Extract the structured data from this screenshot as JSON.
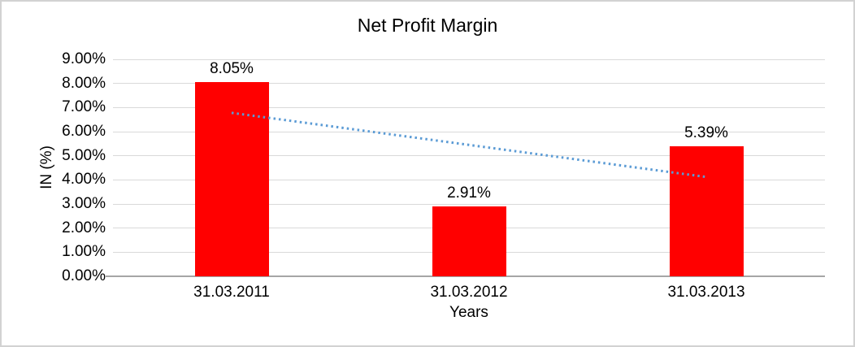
{
  "window": {
    "background": "#FFFFFF",
    "border_color": "#D2D2D2"
  },
  "chart_data": {
    "type": "bar",
    "title": "Net Profit Margin",
    "xlabel": "Years",
    "ylabel": "IN (%)",
    "categories": [
      "31.03.2011",
      "31.03.2012",
      "31.03.2013"
    ],
    "values": [
      8.05,
      2.91,
      5.39
    ],
    "data_labels": [
      "8.05%",
      "2.91%",
      "5.39%"
    ],
    "ylim": [
      0,
      9
    ],
    "ytick_step": 1,
    "ytick_labels": [
      "0.00%",
      "1.00%",
      "2.00%",
      "3.00%",
      "4.00%",
      "5.00%",
      "6.00%",
      "7.00%",
      "8.00%",
      "9.00%"
    ],
    "grid": true,
    "legend": "none",
    "bar_color": "#FF0000",
    "gridline_color": "#D9D9D9",
    "axis_line_color": "#A6A6A6",
    "text_color": "#000000",
    "trendline": {
      "type": "linear",
      "style": "dotted",
      "color": "#5B9BD5",
      "start_value": 6.78,
      "end_value": 4.12
    }
  }
}
